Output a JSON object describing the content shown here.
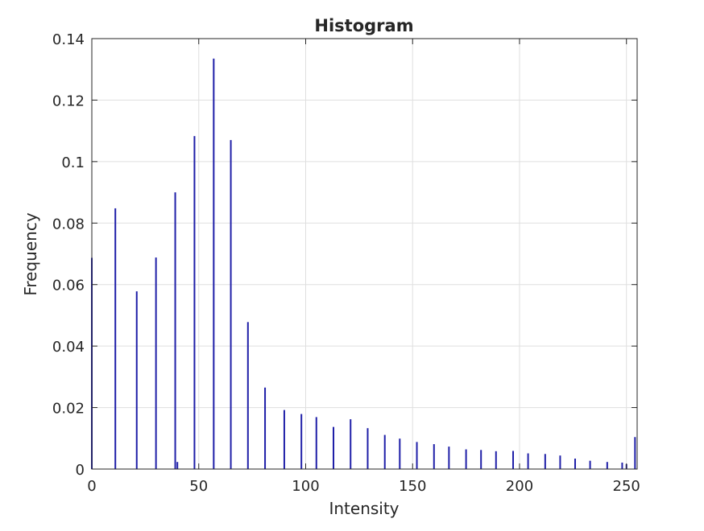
{
  "chart_data": {
    "type": "bar",
    "title": "Histogram",
    "xlabel": "Intensity",
    "ylabel": "Frequency",
    "xlim": [
      0,
      255
    ],
    "ylim": [
      0,
      0.14
    ],
    "grid": true,
    "xticks": [
      0,
      50,
      100,
      150,
      200,
      250
    ],
    "xtick_labels": [
      "0",
      "50",
      "100",
      "150",
      "200",
      "250"
    ],
    "yticks": [
      0,
      0.02,
      0.04,
      0.06,
      0.08,
      0.1,
      0.12,
      0.14
    ],
    "ytick_labels": [
      "0",
      "0.02",
      "0.04",
      "0.06",
      "0.08",
      "0.1",
      "0.12",
      "0.14"
    ],
    "bar_color": "#1f1fa8",
    "bars": [
      {
        "x": 0,
        "y": 0.0687
      },
      {
        "x": 11,
        "y": 0.0848
      },
      {
        "x": 21,
        "y": 0.0578
      },
      {
        "x": 30,
        "y": 0.0688
      },
      {
        "x": 39,
        "y": 0.09
      },
      {
        "x": 40,
        "y": 0.0023
      },
      {
        "x": 48,
        "y": 0.1083
      },
      {
        "x": 57,
        "y": 0.1335
      },
      {
        "x": 65,
        "y": 0.107
      },
      {
        "x": 73,
        "y": 0.0478
      },
      {
        "x": 81,
        "y": 0.0265
      },
      {
        "x": 90,
        "y": 0.0192
      },
      {
        "x": 98,
        "y": 0.0179
      },
      {
        "x": 105,
        "y": 0.0169
      },
      {
        "x": 113,
        "y": 0.0137
      },
      {
        "x": 121,
        "y": 0.0162
      },
      {
        "x": 129,
        "y": 0.0133
      },
      {
        "x": 137,
        "y": 0.0111
      },
      {
        "x": 144,
        "y": 0.0099
      },
      {
        "x": 152,
        "y": 0.0088
      },
      {
        "x": 160,
        "y": 0.0081
      },
      {
        "x": 167,
        "y": 0.0073
      },
      {
        "x": 175,
        "y": 0.0064
      },
      {
        "x": 182,
        "y": 0.0062
      },
      {
        "x": 189,
        "y": 0.0058
      },
      {
        "x": 197,
        "y": 0.0059
      },
      {
        "x": 204,
        "y": 0.0051
      },
      {
        "x": 212,
        "y": 0.0049
      },
      {
        "x": 219,
        "y": 0.0044
      },
      {
        "x": 226,
        "y": 0.0034
      },
      {
        "x": 233,
        "y": 0.0027
      },
      {
        "x": 241,
        "y": 0.0023
      },
      {
        "x": 248,
        "y": 0.0021
      },
      {
        "x": 250,
        "y": 0.0016
      },
      {
        "x": 254,
        "y": 0.0104
      }
    ]
  }
}
